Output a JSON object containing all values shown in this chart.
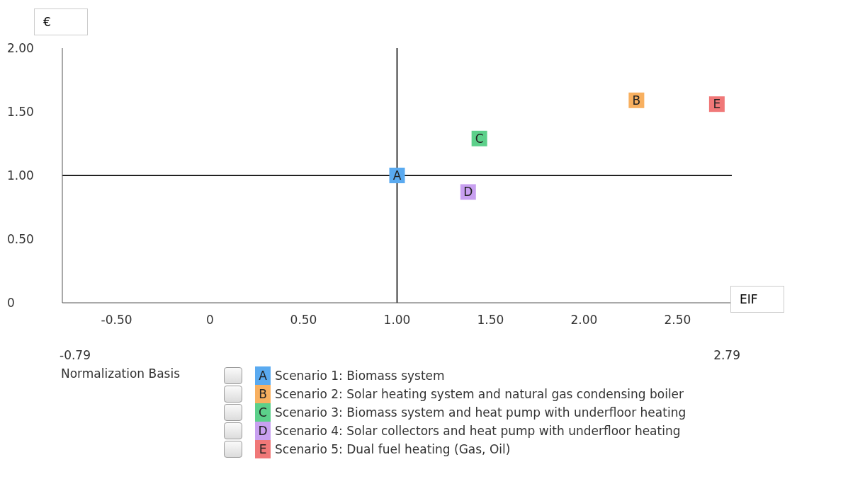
{
  "chart_data": {
    "type": "scatter",
    "xlabel": "EIF",
    "ylabel": "€",
    "legend_title": "Normalization Basis",
    "legend": "bottom",
    "grid": false,
    "marker": "square",
    "xlim": [
      -0.79,
      2.79
    ],
    "xticks": [
      {
        "value": -0.5,
        "label": "-0.50"
      },
      0,
      {
        "value": 0.5,
        "label": "0.50"
      },
      {
        "value": 1,
        "label": "1.00"
      },
      {
        "value": 1.5,
        "label": "1.50"
      },
      {
        "value": 2,
        "label": "2.00"
      },
      {
        "value": 2.5,
        "label": "2.50"
      }
    ],
    "ylim": [
      0,
      2
    ],
    "yticks": [
      0,
      {
        "value": 0.5,
        "label": "0.50"
      },
      {
        "value": 1,
        "label": "1.00"
      },
      {
        "value": 1.5,
        "label": "1.50"
      },
      {
        "value": 2,
        "label": "2.00"
      }
    ],
    "ref_lines": [
      {
        "axis": "x",
        "value": 1,
        "color": "#3a3a3a"
      },
      {
        "axis": "y",
        "value": 1,
        "color": "#222222"
      }
    ],
    "annotations": [
      "-0.79",
      "2.79"
    ],
    "series": [
      {
        "name": "Scenario 1: Biomass system",
        "color": "#5aaaf0",
        "x": [
          1.0
        ],
        "values": [
          1.0
        ],
        "value_labels": [
          "A"
        ]
      },
      {
        "name": "Scenario 2: Solar heating system and natural gas condensing boiler",
        "color": "#f8b060",
        "x": [
          2.28
        ],
        "values": [
          1.59
        ],
        "value_labels": [
          "B"
        ]
      },
      {
        "name": "Scenario 3: Biomass system and heat pump with underfloor heating",
        "color": "#5cd08a",
        "x": [
          1.44
        ],
        "values": [
          1.29
        ],
        "value_labels": [
          "C"
        ]
      },
      {
        "name": "Scenario 4: Solar collectors and heat pump with underfloor heating",
        "color": "#c8a0f0",
        "x": [
          1.38
        ],
        "values": [
          0.87
        ],
        "value_labels": [
          "D"
        ]
      },
      {
        "name": "Scenario 5: Dual fuel heating (Gas, Oil)",
        "color": "#f07878",
        "x": [
          2.71
        ],
        "values": [
          1.56
        ],
        "value_labels": [
          "E"
        ]
      }
    ]
  }
}
